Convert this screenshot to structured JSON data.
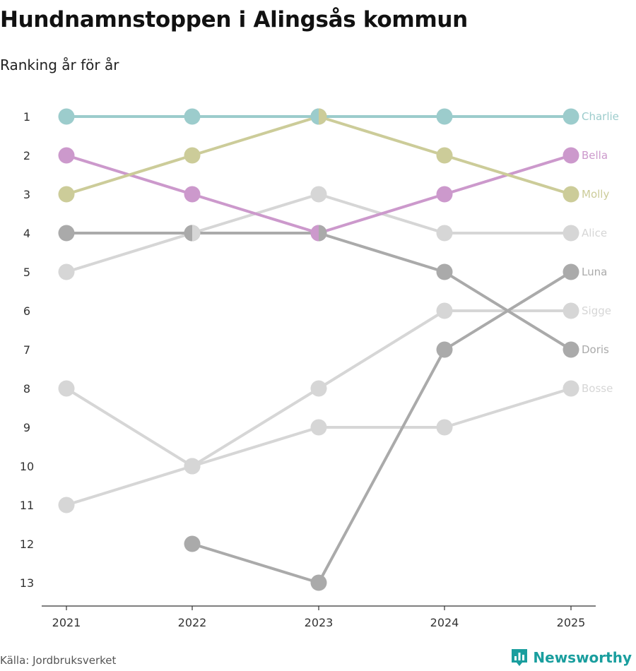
{
  "title": "Hundnamnstoppen i Alingsås kommun",
  "subtitle": "Ranking år för år",
  "source": "Källa: Jordbruksverket",
  "brand": "Newsworthy",
  "colors": {
    "teal": "#9ccccc",
    "olive": "#cccc99",
    "purple": "#cc99cc",
    "dark_grey": "#aaaaaa",
    "light_grey": "#d6d6d6",
    "axis": "#333333",
    "brand": "#1a9e9e"
  },
  "chart_data": {
    "type": "line",
    "subtype": "bump",
    "title": "Hundnamnstoppen i Alingsås kommun",
    "subtitle": "Ranking år för år",
    "x": [
      2021,
      2022,
      2023,
      2024,
      2025
    ],
    "x_tick_labels": [
      "2021",
      "2022",
      "2023",
      "2024",
      "2025"
    ],
    "y_tick_labels": [
      "1",
      "2",
      "3",
      "4",
      "5",
      "6",
      "7",
      "8",
      "9",
      "10",
      "11",
      "12",
      "13"
    ],
    "ylim": [
      1,
      13
    ],
    "y_inverted": true,
    "legend": "inline labels at right end of lines",
    "series": [
      {
        "name": "Charlie",
        "color": "#9ccccc",
        "values": [
          1,
          1,
          1,
          1,
          1
        ]
      },
      {
        "name": "Bella",
        "color": "#cc99cc",
        "values": [
          2,
          3,
          4,
          3,
          2
        ]
      },
      {
        "name": "Molly",
        "color": "#cccc99",
        "values": [
          3,
          2,
          1,
          2,
          3
        ]
      },
      {
        "name": "Alice",
        "color": "#d6d6d6",
        "values": [
          5,
          4,
          3,
          4,
          4
        ]
      },
      {
        "name": "Luna",
        "color": "#aaaaaa",
        "values": [
          null,
          12,
          13,
          7,
          5
        ]
      },
      {
        "name": "Sigge",
        "color": "#d6d6d6",
        "values": [
          8,
          10,
          8,
          6,
          6
        ]
      },
      {
        "name": "Doris",
        "color": "#aaaaaa",
        "values": [
          4,
          4,
          4,
          5,
          7
        ]
      },
      {
        "name": "Bosse",
        "color": "#d6d6d6",
        "values": [
          11,
          10,
          9,
          9,
          8
        ]
      }
    ]
  }
}
